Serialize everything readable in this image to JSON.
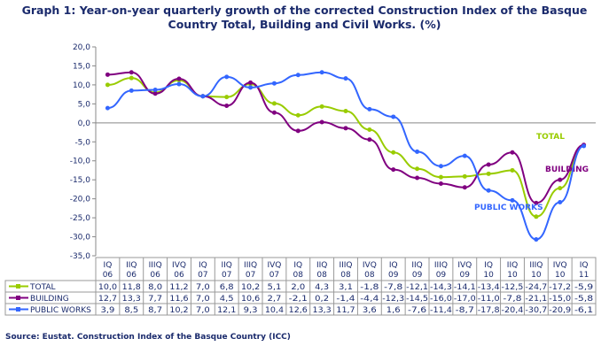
{
  "title_line1": "Graph 1: Year-on-year quarterly growth of the corrected Construction Index of the Basque",
  "title_line2": "Country Total, Building and Civil Works. (%)",
  "source": "Source: Eustat. Construction Index of the Basque Country (ICC)",
  "chart_data": {
    "type": "line",
    "categories": [
      [
        "IQ",
        "06"
      ],
      [
        "IIQ",
        "06"
      ],
      [
        "IIIQ",
        "06"
      ],
      [
        "IVQ",
        "06"
      ],
      [
        "IQ",
        "07"
      ],
      [
        "IIQ",
        "07"
      ],
      [
        "IIIQ",
        "07"
      ],
      [
        "IVQ",
        "07"
      ],
      [
        "IQ",
        "08"
      ],
      [
        "IIQ",
        "08"
      ],
      [
        "IIIQ",
        "08"
      ],
      [
        "IVQ",
        "08"
      ],
      [
        "IQ",
        "09"
      ],
      [
        "IIQ",
        "09"
      ],
      [
        "IIIQ",
        "09"
      ],
      [
        "IVQ",
        "09"
      ],
      [
        "IQ",
        "10"
      ],
      [
        "IIQ",
        "10"
      ],
      [
        "IIIQ",
        "10"
      ],
      [
        "IVQ",
        "10"
      ],
      [
        "IQ",
        "11"
      ]
    ],
    "ylim": [
      -35,
      20
    ],
    "yticks": [
      "20,0",
      "15,0",
      "10,0",
      "5,0",
      "0,0",
      "-5,0",
      "-10,0",
      "-15,0",
      "-20,0",
      "-25,0",
      "-30,0",
      "-35,0"
    ],
    "grid": false,
    "series": [
      {
        "name": "TOTAL",
        "color": "#99cc00",
        "values": [
          10.0,
          11.8,
          8.0,
          11.2,
          7.0,
          6.8,
          10.2,
          5.1,
          2.0,
          4.3,
          3.1,
          -1.8,
          -7.8,
          -12.1,
          -14.3,
          -14.1,
          -13.4,
          -12.5,
          -24.7,
          -17.2,
          -5.9
        ],
        "labels": [
          "10,0",
          "11,8",
          "8,0",
          "11,2",
          "7,0",
          "6,8",
          "10,2",
          "5,1",
          "2,0",
          "4,3",
          "3,1",
          "-1,8",
          "-7,8",
          "-12,1",
          "-14,3",
          "-14,1",
          "-13,4",
          "-12,5",
          "-24,7",
          "-17,2",
          "-5,9"
        ]
      },
      {
        "name": "BUILDING",
        "color": "#800080",
        "values": [
          12.7,
          13.3,
          7.7,
          11.6,
          7.0,
          4.5,
          10.6,
          2.7,
          -2.1,
          0.2,
          -1.4,
          -4.4,
          -12.3,
          -14.5,
          -16.0,
          -17.0,
          -11.0,
          -7.8,
          -21.1,
          -15.0,
          -5.8
        ],
        "labels": [
          "12,7",
          "13,3",
          "7,7",
          "11,6",
          "7,0",
          "4,5",
          "10,6",
          "2,7",
          "-2,1",
          "0,2",
          "-1,4",
          "-4,4",
          "-12,3",
          "-14,5",
          "-16,0",
          "-17,0",
          "-11,0",
          "-7,8",
          "-21,1",
          "-15,0",
          "-5,8"
        ]
      },
      {
        "name": "PUBLIC WORKS",
        "color": "#3366ff",
        "values": [
          3.9,
          8.5,
          8.7,
          10.2,
          7.0,
          12.1,
          9.3,
          10.4,
          12.6,
          13.3,
          11.7,
          3.6,
          1.6,
          -7.6,
          -11.4,
          -8.7,
          -17.8,
          -20.4,
          -30.7,
          -20.9,
          -6.1
        ],
        "labels": [
          "3,9",
          "8,5",
          "8,7",
          "10,2",
          "7,0",
          "12,1",
          "9,3",
          "10,4",
          "12,6",
          "13,3",
          "11,7",
          "3,6",
          "1,6",
          "-7,6",
          "-11,4",
          "-8,7",
          "-17,8",
          "-20,4",
          "-30,7",
          "-20,9",
          "-6,1"
        ]
      }
    ]
  }
}
